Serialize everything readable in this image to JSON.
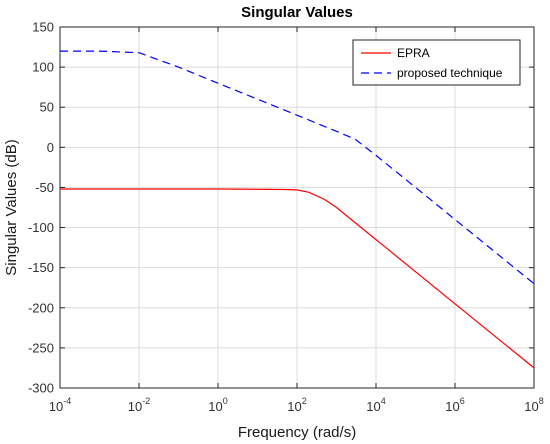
{
  "chart_data": {
    "type": "line",
    "title": "Singular Values",
    "xlabel": "Frequency (rad/s)",
    "ylabel": "Singular Values (dB)",
    "x_scale": "log",
    "xlim": [
      0.0001,
      100000000
    ],
    "ylim": [
      -300,
      150
    ],
    "x_ticks": [
      {
        "base": "10",
        "exp": "-4",
        "value": 0.0001
      },
      {
        "base": "10",
        "exp": "-2",
        "value": 0.01
      },
      {
        "base": "10",
        "exp": "0",
        "value": 1
      },
      {
        "base": "10",
        "exp": "2",
        "value": 100
      },
      {
        "base": "10",
        "exp": "4",
        "value": 10000
      },
      {
        "base": "10",
        "exp": "6",
        "value": 1000000
      },
      {
        "base": "10",
        "exp": "8",
        "value": 100000000
      }
    ],
    "y_ticks": [
      "150",
      "100",
      "50",
      "0",
      "-50",
      "-100",
      "-150",
      "-200",
      "-250",
      "-300"
    ],
    "grid": true,
    "legend_position": "top-right",
    "series": [
      {
        "name": "EPRA",
        "color": "#ff0000",
        "line_style": "solid",
        "x": [
          0.0001,
          0.01,
          1,
          50,
          100,
          200,
          500,
          1000,
          10000,
          1000000,
          100000000
        ],
        "y": [
          -52,
          -52,
          -52,
          -52.5,
          -53,
          -56,
          -65,
          -75,
          -115,
          -195,
          -275
        ]
      },
      {
        "name": "proposed technique",
        "color": "#0000ff",
        "line_style": "dashed",
        "x": [
          0.0001,
          0.001,
          0.01,
          0.1,
          1,
          10,
          100,
          1000,
          3000,
          10000,
          100000,
          1000000,
          10000000,
          100000000
        ],
        "y": [
          120,
          120,
          118,
          100,
          80,
          60,
          40,
          20,
          10,
          -10,
          -50,
          -90,
          -130,
          -170
        ]
      }
    ]
  }
}
